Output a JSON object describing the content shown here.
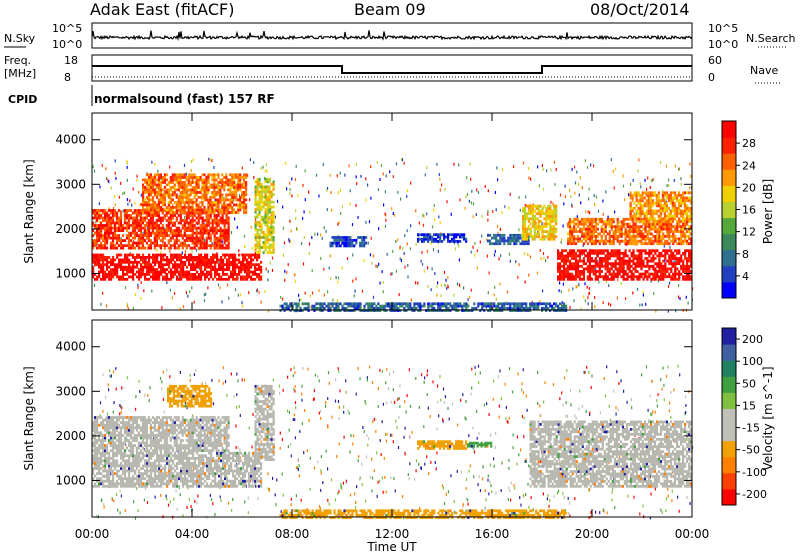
{
  "header": {
    "radar": "Adak East (fitACF)",
    "beam": "Beam 09",
    "date": "08/Oct/2014"
  },
  "noise_panel": {
    "left_label": "N.Sky",
    "right_label": "N.Search",
    "left_ticks": [
      "10^5",
      "10^0"
    ],
    "right_ticks": [
      "10^5",
      "10^0"
    ]
  },
  "freq_panel": {
    "left_label_1": "Freq.",
    "left_label_2": "[MHz]",
    "left_ticks": [
      "18",
      "8"
    ],
    "right_label": "Nave",
    "right_ticks": [
      "60",
      "0"
    ],
    "cpid_label": "CPID",
    "cpid_text": "normalsound (fast) 157 RF"
  },
  "colors": {
    "power_scale": [
      "#0000ff",
      "#2040c0",
      "#2f6f8f",
      "#3c8a5c",
      "#54a83c",
      "#b8d030",
      "#f0d000",
      "#ff9900",
      "#ff6000",
      "#ff2000",
      "#ff0000"
    ],
    "velocity_scale": [
      "#ff0000",
      "#ff4000",
      "#ff8000",
      "#f0a000",
      "#c0c0b8",
      "#c0c0b8",
      "#80c040",
      "#40a040",
      "#208060",
      "#4060a0",
      "#2020a0"
    ],
    "ground_scatter": "#b8b8b0"
  },
  "chart_data": [
    {
      "type": "heatmap",
      "name": "power",
      "ylabel": "Slant Range [km]",
      "colorbar_label": "Power [dB]",
      "colorbar_ticks": [
        "4",
        "8",
        "12",
        "16",
        "20",
        "24",
        "28"
      ],
      "yticks": [
        "1000",
        "2000",
        "3000",
        "4000"
      ],
      "xlim_hours": [
        0,
        24
      ],
      "ylim_km": [
        180,
        4600
      ],
      "regions": [
        {
          "h0": 0.0,
          "h1": 6.8,
          "r0": 900,
          "r1": 1500,
          "level": 0.95
        },
        {
          "h0": 0.0,
          "h1": 5.5,
          "r0": 1600,
          "r1": 2500,
          "level": 0.85
        },
        {
          "h0": 2.0,
          "h1": 6.2,
          "r0": 2400,
          "r1": 3300,
          "level": 0.75
        },
        {
          "h0": 6.5,
          "h1": 7.3,
          "r0": 1500,
          "r1": 3200,
          "level": 0.55
        },
        {
          "h0": 13.0,
          "h1": 15.0,
          "r0": 1750,
          "r1": 1950,
          "level": 0.1
        },
        {
          "h0": 9.5,
          "h1": 11.0,
          "r0": 1650,
          "r1": 1900,
          "level": 0.15
        },
        {
          "h0": 15.8,
          "h1": 17.5,
          "r0": 1700,
          "r1": 1950,
          "level": 0.2
        },
        {
          "h0": 17.2,
          "h1": 18.6,
          "r0": 1800,
          "r1": 2600,
          "level": 0.6
        },
        {
          "h0": 18.6,
          "h1": 24.0,
          "r0": 900,
          "r1": 1600,
          "level": 0.95
        },
        {
          "h0": 19.0,
          "h1": 24.0,
          "r0": 1700,
          "r1": 2300,
          "level": 0.75
        },
        {
          "h0": 21.5,
          "h1": 24.0,
          "r0": 2200,
          "r1": 2900,
          "level": 0.7
        },
        {
          "h0": 7.5,
          "h1": 19.0,
          "r0": 200,
          "r1": 400,
          "level": 0.2
        }
      ]
    },
    {
      "type": "heatmap",
      "name": "velocity",
      "ylabel": "Slant Range [km]",
      "colorbar_label": "Velocity [m s^-1]",
      "colorbar_ticks": [
        "200",
        "100",
        "50",
        "15",
        "-15",
        "-50",
        "-100",
        "-200"
      ],
      "yticks": [
        "1000",
        "2000",
        "3000",
        "4000"
      ],
      "xticks": [
        "00:00",
        "04:00",
        "08:00",
        "12:00",
        "16:00",
        "20:00",
        "00:00"
      ],
      "xlabel": "Time UT",
      "xlim_hours": [
        0,
        24
      ],
      "ylim_km": [
        180,
        4600
      ],
      "regions": [
        {
          "h0": 0.0,
          "h1": 6.8,
          "r0": 900,
          "r1": 1700,
          "kind": "ground"
        },
        {
          "h0": 0.0,
          "h1": 5.5,
          "r0": 1700,
          "r1": 2500,
          "kind": "ground"
        },
        {
          "h0": 3.0,
          "h1": 4.8,
          "r0": 2700,
          "r1": 3200,
          "kind": "orange"
        },
        {
          "h0": 6.5,
          "h1": 7.3,
          "r0": 1500,
          "r1": 3200,
          "kind": "ground"
        },
        {
          "h0": 13.0,
          "h1": 15.0,
          "r0": 1750,
          "r1": 1950,
          "kind": "orange"
        },
        {
          "h0": 15.0,
          "h1": 16.0,
          "r0": 1800,
          "r1": 1900,
          "kind": "green"
        },
        {
          "h0": 17.5,
          "h1": 24.0,
          "r0": 900,
          "r1": 2400,
          "kind": "ground"
        },
        {
          "h0": 7.5,
          "h1": 19.0,
          "r0": 200,
          "r1": 400,
          "kind": "orange"
        }
      ]
    }
  ]
}
